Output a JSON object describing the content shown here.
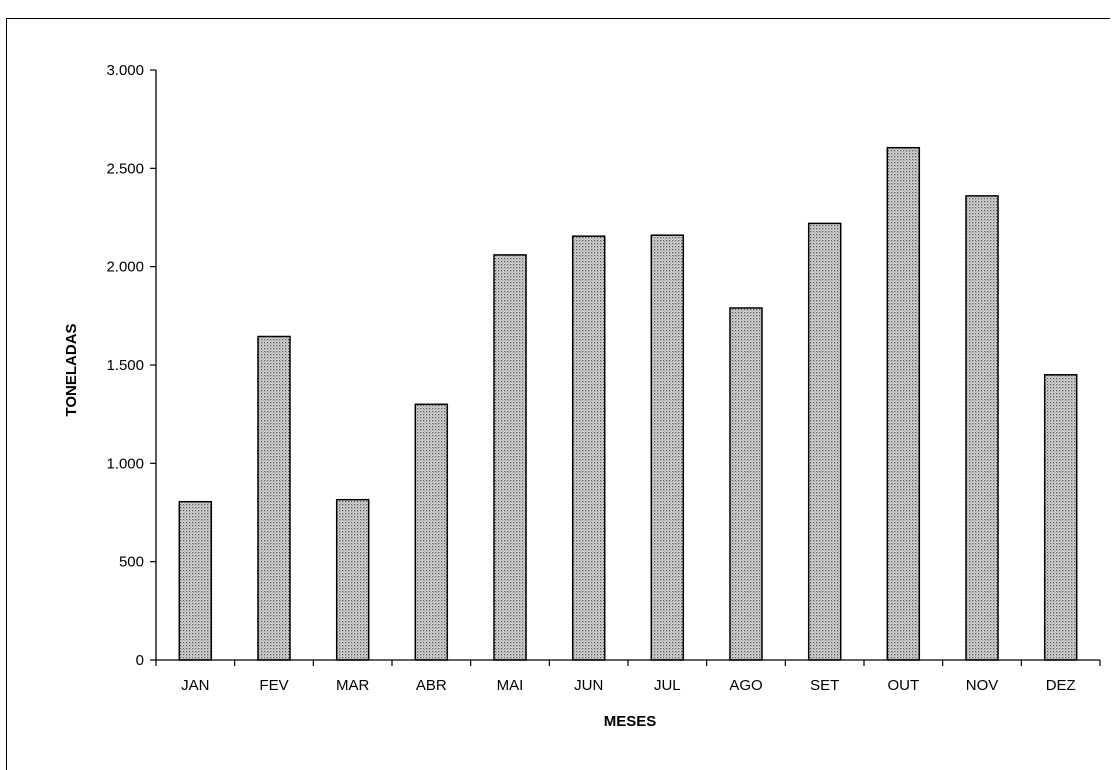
{
  "chart_data": {
    "type": "bar",
    "categories": [
      "JAN",
      "FEV",
      "MAR",
      "ABR",
      "MAI",
      "JUN",
      "JUL",
      "AGO",
      "SET",
      "OUT",
      "NOV",
      "DEZ"
    ],
    "values": [
      805,
      1645,
      815,
      1300,
      2060,
      2155,
      2160,
      1790,
      2220,
      2605,
      2360,
      1450
    ],
    "title": "",
    "xlabel": "MESES",
    "ylabel": "TONELADAS",
    "ylim": [
      0,
      3000
    ],
    "yticks": [
      0,
      500,
      1000,
      1500,
      2000,
      2500,
      3000
    ],
    "ytick_labels": [
      "0",
      "500",
      "1.000",
      "1.500",
      "2.000",
      "2.500",
      "3.000"
    ],
    "grid": false,
    "legend": "none",
    "bar_fill": "#c8c8c8",
    "bar_stroke": "#000000"
  }
}
